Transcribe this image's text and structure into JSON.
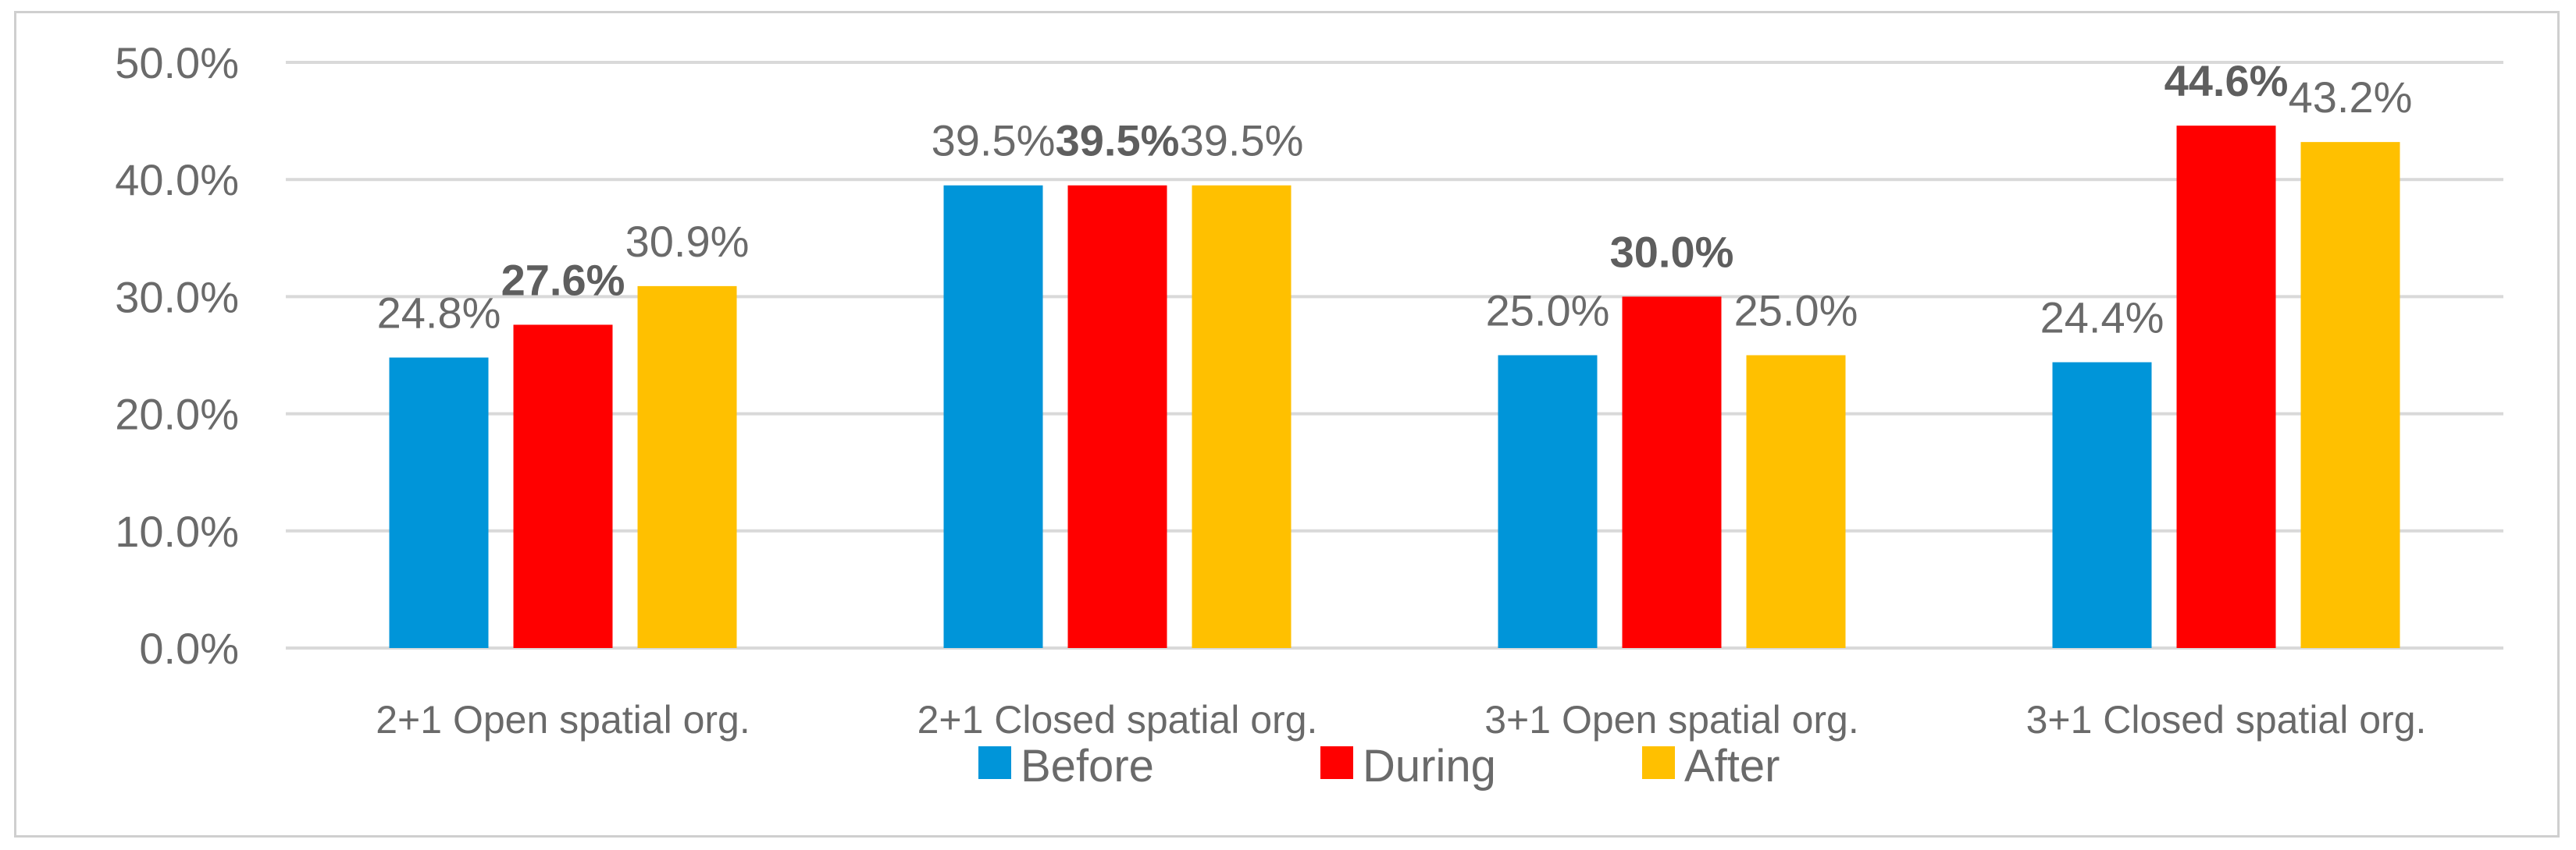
{
  "chart_data": {
    "type": "bar",
    "categories": [
      "2+1 Open spatial org.",
      "2+1 Closed spatial org.",
      "3+1 Open spatial org.",
      "3+1 Closed spatial org."
    ],
    "series": [
      {
        "name": "Before",
        "color": "#0095d9",
        "values": [
          24.8,
          39.5,
          25.0,
          24.4
        ],
        "labels": [
          "24.8%",
          "39.5%",
          "25.0%",
          "24.4%"
        ],
        "bold": [
          false,
          false,
          false,
          false
        ]
      },
      {
        "name": "During",
        "color": "#ff0000",
        "values": [
          27.6,
          39.5,
          30.0,
          44.6
        ],
        "labels": [
          "27.6%",
          "39.5%",
          "30.0%",
          "44.6%"
        ],
        "bold": [
          true,
          true,
          true,
          true
        ]
      },
      {
        "name": "After",
        "color": "#ffc000",
        "values": [
          30.9,
          39.5,
          25.0,
          43.2
        ],
        "labels": [
          "30.9%",
          "39.5%",
          "25.0%",
          "43.2%"
        ],
        "bold": [
          false,
          false,
          false,
          false
        ]
      }
    ],
    "y_ticks": [
      "0.0%",
      "10.0%",
      "20.0%",
      "30.0%",
      "40.0%",
      "50.0%"
    ],
    "ylim": [
      0,
      50
    ],
    "title": "",
    "xlabel": "",
    "ylabel": "",
    "grid": true,
    "legend_position": "bottom"
  }
}
